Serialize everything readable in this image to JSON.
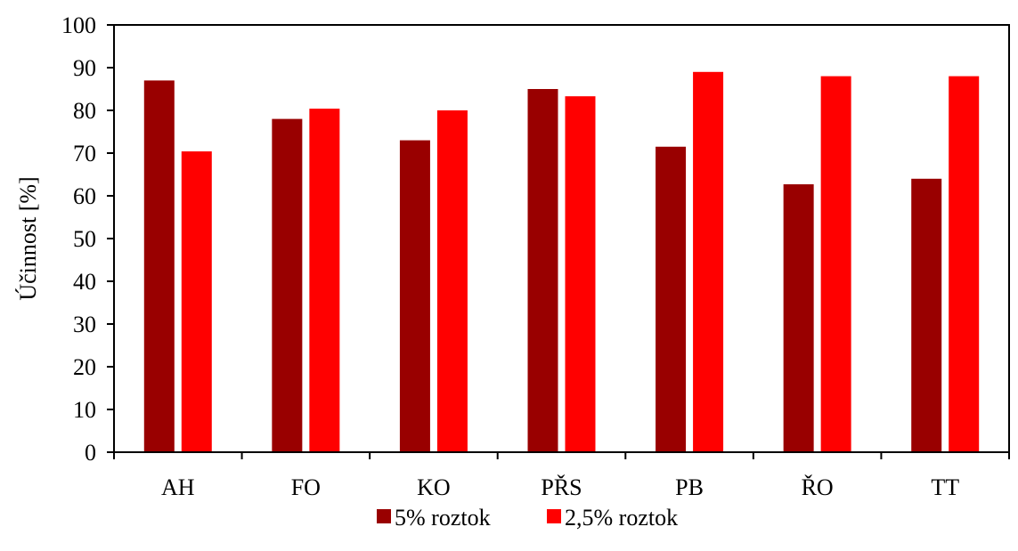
{
  "chart_data": {
    "type": "bar",
    "title": "",
    "xlabel": "",
    "ylabel": "Účinnost [%]",
    "ylim": [
      0,
      100
    ],
    "yticks": [
      0,
      10,
      20,
      30,
      40,
      50,
      60,
      70,
      80,
      90,
      100
    ],
    "categories": [
      "AH",
      "FO",
      "KO",
      "PŘS",
      "PB",
      "ŘO",
      "TT"
    ],
    "series": [
      {
        "name": "5% roztok",
        "color": "#990000",
        "values": [
          87,
          78,
          73,
          85,
          71.5,
          62.7,
          64
        ]
      },
      {
        "name": "2,5% roztok",
        "color": "#ff0000",
        "values": [
          70.4,
          80.4,
          80,
          83.3,
          89,
          88,
          88
        ]
      }
    ],
    "grid": false,
    "legend": "bottom"
  }
}
